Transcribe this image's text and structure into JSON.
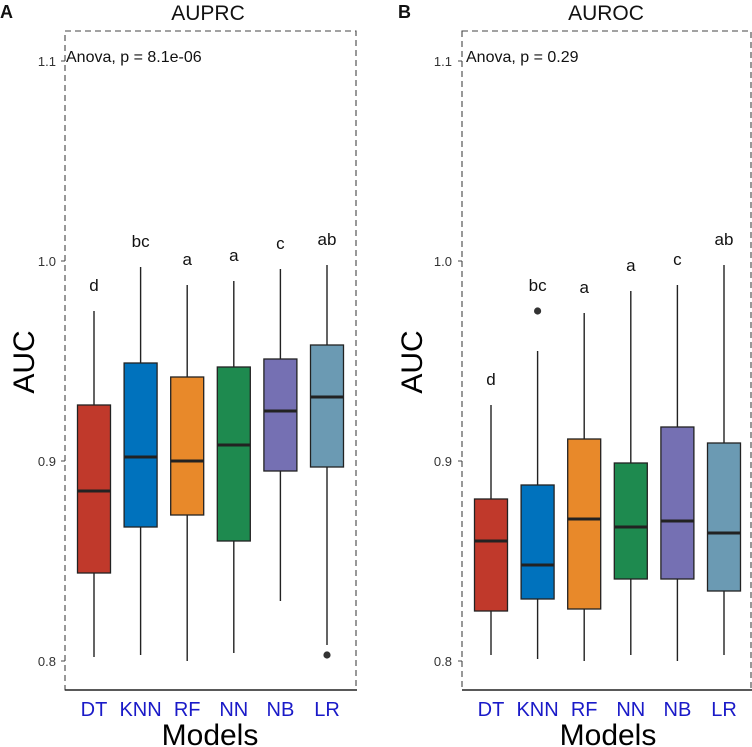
{
  "chart_data": [
    {
      "type": "box",
      "panel_label": "A",
      "title": "AUPRC",
      "xlabel": "Models",
      "ylabel": "AUC",
      "ylim": [
        0.787,
        1.115
      ],
      "yticks": [
        0.8,
        0.9,
        1.0,
        1.1
      ],
      "ytick_labels": [
        "0.8",
        "0.9",
        "1.0",
        "1.1"
      ],
      "annotation": "Anova, p = 8.1e-06",
      "categories": [
        "DT",
        "KNN",
        "RF",
        "NN",
        "NB",
        "LR"
      ],
      "colors": [
        "#c0392b",
        "#0072bd",
        "#e8892a",
        "#1e8a4f",
        "#7570b3",
        "#6b9ab3"
      ],
      "boxes": [
        {
          "name": "DT",
          "whisker_low": 0.802,
          "q1": 0.844,
          "median": 0.885,
          "q3": 0.928,
          "whisker_high": 0.975,
          "outliers": [],
          "letter": "d"
        },
        {
          "name": "KNN",
          "whisker_low": 0.803,
          "q1": 0.867,
          "median": 0.902,
          "q3": 0.949,
          "whisker_high": 0.997,
          "outliers": [],
          "letter": "bc"
        },
        {
          "name": "RF",
          "whisker_low": 0.8,
          "q1": 0.873,
          "median": 0.9,
          "q3": 0.942,
          "whisker_high": 0.988,
          "outliers": [],
          "letter": "a"
        },
        {
          "name": "NN",
          "whisker_low": 0.804,
          "q1": 0.86,
          "median": 0.908,
          "q3": 0.947,
          "whisker_high": 0.99,
          "outliers": [],
          "letter": "a"
        },
        {
          "name": "NB",
          "whisker_low": 0.83,
          "q1": 0.895,
          "median": 0.925,
          "q3": 0.951,
          "whisker_high": 0.996,
          "outliers": [],
          "letter": "c"
        },
        {
          "name": "LR",
          "whisker_low": 0.808,
          "q1": 0.897,
          "median": 0.932,
          "q3": 0.958,
          "whisker_high": 0.998,
          "outliers": [
            0.803
          ],
          "letter": "ab"
        }
      ]
    },
    {
      "type": "box",
      "panel_label": "B",
      "title": "AUROC",
      "xlabel": "Models",
      "ylabel": "AUC",
      "ylim": [
        0.787,
        1.115
      ],
      "yticks": [
        0.8,
        0.9,
        1.0,
        1.1
      ],
      "ytick_labels": [
        "0.8",
        "0.9",
        "1.0",
        "1.1"
      ],
      "annotation": "Anova, p = 0.29",
      "categories": [
        "DT",
        "KNN",
        "RF",
        "NN",
        "NB",
        "LR"
      ],
      "colors": [
        "#c0392b",
        "#0072bd",
        "#e8892a",
        "#1e8a4f",
        "#7570b3",
        "#6b9ab3"
      ],
      "boxes": [
        {
          "name": "DT",
          "whisker_low": 0.803,
          "q1": 0.825,
          "median": 0.86,
          "q3": 0.881,
          "whisker_high": 0.928,
          "outliers": [],
          "letter": "d"
        },
        {
          "name": "KNN",
          "whisker_low": 0.801,
          "q1": 0.831,
          "median": 0.848,
          "q3": 0.888,
          "whisker_high": 0.955,
          "outliers": [
            0.975
          ],
          "letter": "bc"
        },
        {
          "name": "RF",
          "whisker_low": 0.8,
          "q1": 0.826,
          "median": 0.871,
          "q3": 0.911,
          "whisker_high": 0.974,
          "outliers": [],
          "letter": "a"
        },
        {
          "name": "NN",
          "whisker_low": 0.803,
          "q1": 0.841,
          "median": 0.867,
          "q3": 0.899,
          "whisker_high": 0.985,
          "outliers": [],
          "letter": "a"
        },
        {
          "name": "NB",
          "whisker_low": 0.8,
          "q1": 0.841,
          "median": 0.87,
          "q3": 0.917,
          "whisker_high": 0.988,
          "outliers": [],
          "letter": "c"
        },
        {
          "name": "LR",
          "whisker_low": 0.803,
          "q1": 0.835,
          "median": 0.864,
          "q3": 0.909,
          "whisker_high": 0.998,
          "outliers": [],
          "letter": "ab"
        }
      ]
    }
  ]
}
